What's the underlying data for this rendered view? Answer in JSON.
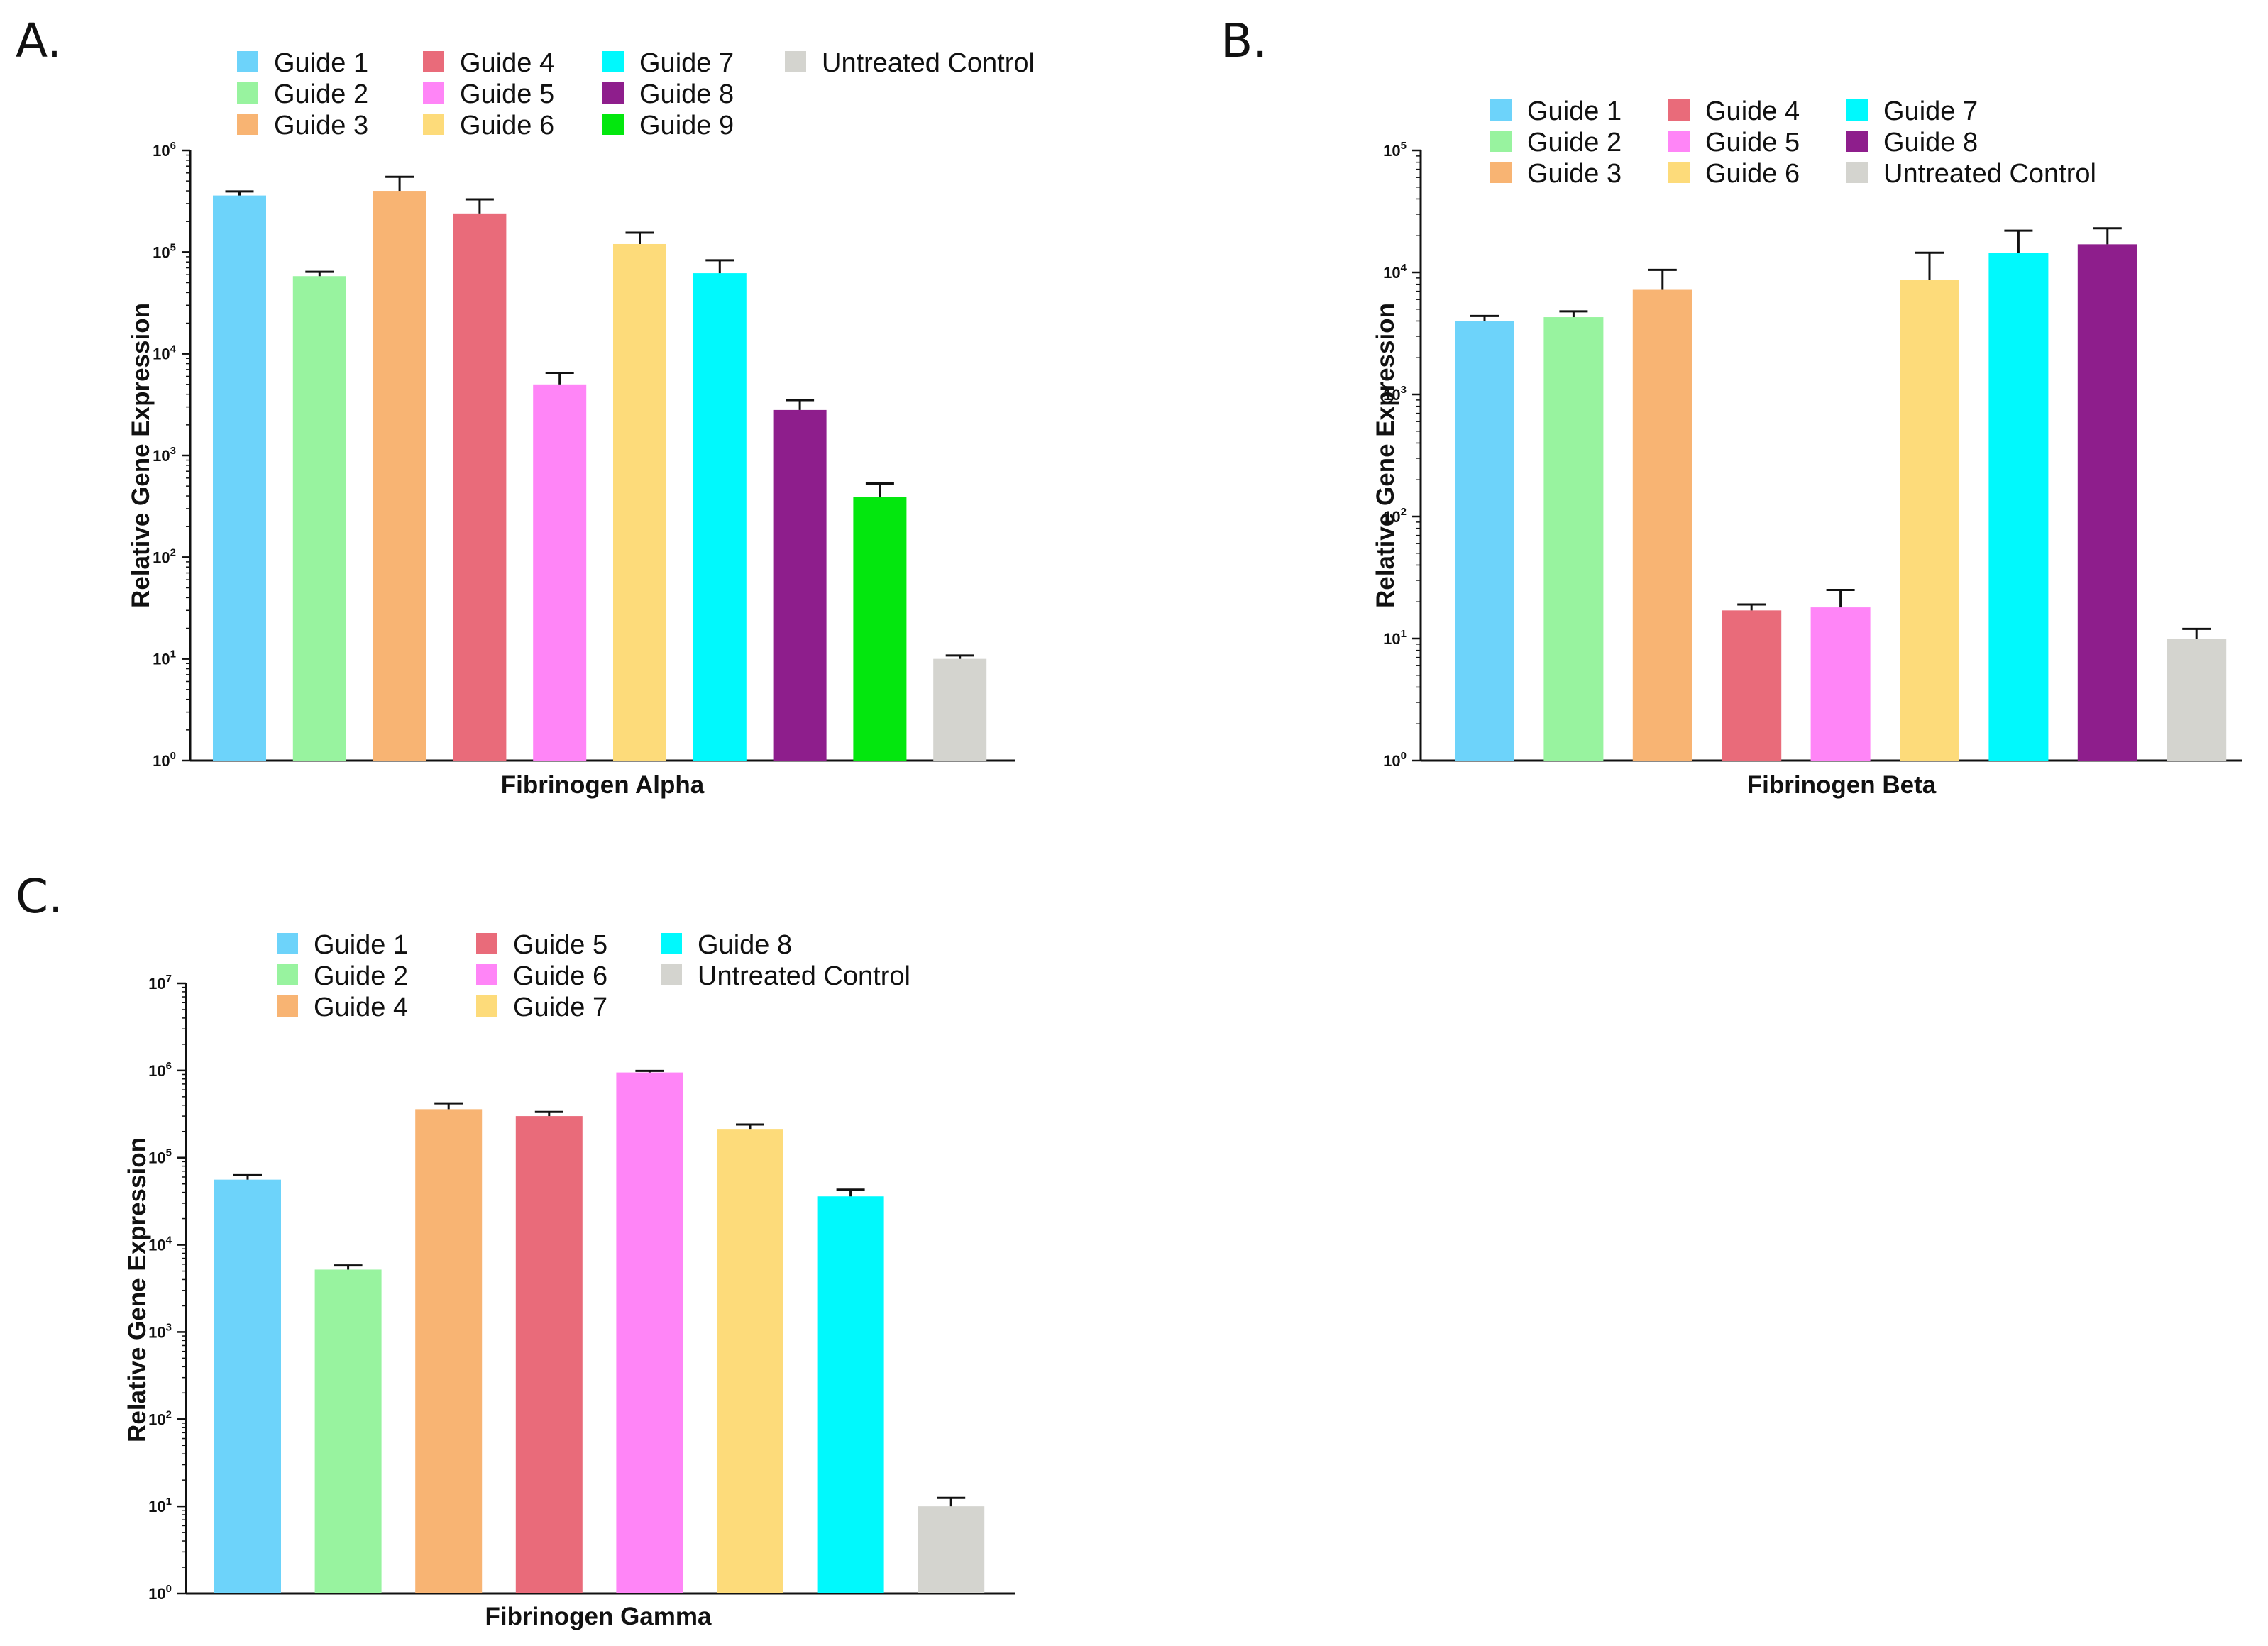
{
  "colors": {
    "guide_1": "#6dd3fa",
    "guide_2": "#98f39f",
    "guide_3": "#f8b473",
    "guide_4": "#e96b7a",
    "guide_5": "#ff85f7",
    "guide_6": "#fddb7a",
    "guide_7": "#00f9fd",
    "guide_8": "#8e1e8c",
    "guide_9": "#03e70e",
    "untreated": "#d4d4cf"
  },
  "chart_data": [
    {
      "panel": "A.",
      "type": "bar",
      "scale": "log10",
      "title": "",
      "xlabel": "Fibrinogen Alpha",
      "ylabel": "Relative Gene Expression",
      "ylim": [
        1,
        1000000
      ],
      "tick_exponents": [
        "0",
        "1",
        "2",
        "3",
        "4",
        "5",
        "6"
      ],
      "legend_columns": 4,
      "legend_position": "top",
      "legend": [
        "Guide 1",
        "Guide 2",
        "Guide 3",
        "Guide 4",
        "Guide 5",
        "Guide 6",
        "Guide 7",
        "Guide 8",
        "Guide 9",
        "Untreated Control"
      ],
      "categories": [
        "Guide 1",
        "Guide 2",
        "Guide 3",
        "Guide 4",
        "Guide 5",
        "Guide 6",
        "Guide 7",
        "Guide 8",
        "Guide 9",
        "Untreated Control"
      ],
      "values": [
        360000,
        58000,
        400000,
        240000,
        5000,
        120000,
        62000,
        2800,
        390,
        10
      ],
      "error_upper": [
        395000,
        64000,
        550000,
        330000,
        6500,
        155000,
        83000,
        3500,
        530,
        10.8
      ],
      "color_keys": [
        "guide_1",
        "guide_2",
        "guide_3",
        "guide_4",
        "guide_5",
        "guide_6",
        "guide_7",
        "guide_8",
        "guide_9",
        "untreated"
      ]
    },
    {
      "panel": "B.",
      "type": "bar",
      "scale": "log10",
      "title": "",
      "xlabel": "Fibrinogen Beta",
      "ylabel": "Relative Gene Expression",
      "ylim": [
        1,
        100000
      ],
      "tick_exponents": [
        "0",
        "1",
        "2",
        "3",
        "4",
        "5"
      ],
      "legend_columns": 3,
      "legend_position": "top",
      "legend": [
        "Guide 1",
        "Guide 2",
        "Guide 3",
        "Guide 4",
        "Guide 5",
        "Guide 6",
        "Guide 7",
        "Guide 8",
        "Untreated Control"
      ],
      "categories": [
        "Guide 1",
        "Guide 2",
        "Guide 3",
        "Guide 4",
        "Guide 5",
        "Guide 6",
        "Guide 7",
        "Guide 8",
        "Untreated Control"
      ],
      "values": [
        4000,
        4300,
        7200,
        17,
        18,
        8700,
        14500,
        17000,
        10
      ],
      "error_upper": [
        4400,
        4800,
        10500,
        19,
        25,
        14500,
        22000,
        23000,
        12
      ],
      "color_keys": [
        "guide_1",
        "guide_2",
        "guide_3",
        "guide_4",
        "guide_5",
        "guide_6",
        "guide_7",
        "guide_8",
        "untreated"
      ]
    },
    {
      "panel": "C.",
      "type": "bar",
      "scale": "log10",
      "title": "",
      "xlabel": "Fibrinogen Gamma",
      "ylabel": "Relative Gene Expression",
      "ylim": [
        1,
        10000000
      ],
      "tick_exponents": [
        "0",
        "1",
        "2",
        "3",
        "4",
        "5",
        "6",
        "7"
      ],
      "legend_columns": 3,
      "legend_position": "top",
      "legend": [
        "Guide 1",
        "Guide 2",
        "Guide 4",
        "Guide 5",
        "Guide 6",
        "Guide 7",
        "Guide 8",
        "Untreated Control"
      ],
      "categories": [
        "Guide 1",
        "Guide 2",
        "Guide 4",
        "Guide 5",
        "Guide 6",
        "Guide 7",
        "Guide 8",
        "Untreated Control"
      ],
      "values": [
        56000,
        5200,
        360000,
        300000,
        950000,
        210000,
        36000,
        10
      ],
      "error_upper": [
        63000,
        5800,
        420000,
        335000,
        990000,
        240000,
        43000,
        12.5
      ],
      "color_keys": [
        "guide_1",
        "guide_2",
        "guide_3",
        "guide_4",
        "guide_5",
        "guide_6",
        "guide_7",
        "untreated"
      ]
    }
  ]
}
